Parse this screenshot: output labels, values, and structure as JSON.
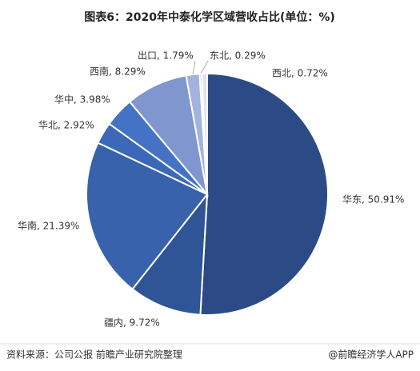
{
  "chart_data": {
    "type": "pie",
    "title": "图表6：2020年中泰化学区域营收占比(单位：%)",
    "values": [
      50.91,
      9.72,
      21.39,
      2.92,
      3.98,
      8.29,
      1.79,
      0.29,
      0.72
    ],
    "value_labels": [
      "华东, 50.91%",
      "疆内, 9.72%",
      "华南, 21.39%",
      "华北, 2.92%",
      "华中, 3.98%",
      "西南, 8.29%",
      "出口, 1.79%",
      "东北, 0.29%",
      "西北, 0.72%"
    ],
    "colors": [
      "#2c4b86",
      "#2f5597",
      "#3862ab",
      "#3b68b8",
      "#4472c4",
      "#7f96cf",
      "#a3b3dd",
      "#c5cfe8",
      "#dde3f2"
    ],
    "source": "资料来源：公司公报 前瞻产业研究院整理",
    "credit": "@前瞻经济学人APP"
  }
}
